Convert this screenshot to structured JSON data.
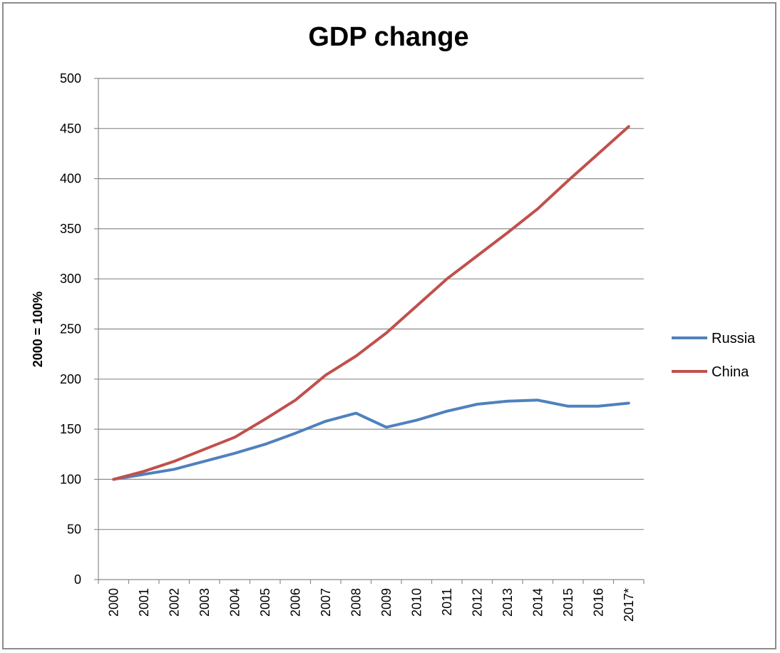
{
  "chart_data": {
    "type": "line",
    "title": "GDP change",
    "xlabel": "",
    "ylabel": "2000 = 100%",
    "ylim": [
      0,
      500
    ],
    "yticks": [
      "0",
      "50",
      "100",
      "150",
      "200",
      "250",
      "300",
      "350",
      "400",
      "450",
      "500"
    ],
    "categories": [
      "2000",
      "2001",
      "2002",
      "2003",
      "2004",
      "2005",
      "2006",
      "2007",
      "2008",
      "2009",
      "2010",
      "2011",
      "2012",
      "2013",
      "2014",
      "2015",
      "2016",
      "2017*"
    ],
    "grid": true,
    "legend_position": "right",
    "series": [
      {
        "name": "Russia",
        "color": "#4F81BD",
        "values": [
          100,
          105,
          110,
          118,
          126,
          135,
          146,
          158,
          166,
          152,
          159,
          168,
          175,
          178,
          179,
          173,
          173,
          176
        ]
      },
      {
        "name": "China",
        "color": "#C0504D",
        "values": [
          100,
          108,
          118,
          130,
          142,
          160,
          179,
          204,
          223,
          246,
          273,
          300,
          323,
          346,
          370,
          398,
          425,
          452
        ]
      }
    ]
  }
}
